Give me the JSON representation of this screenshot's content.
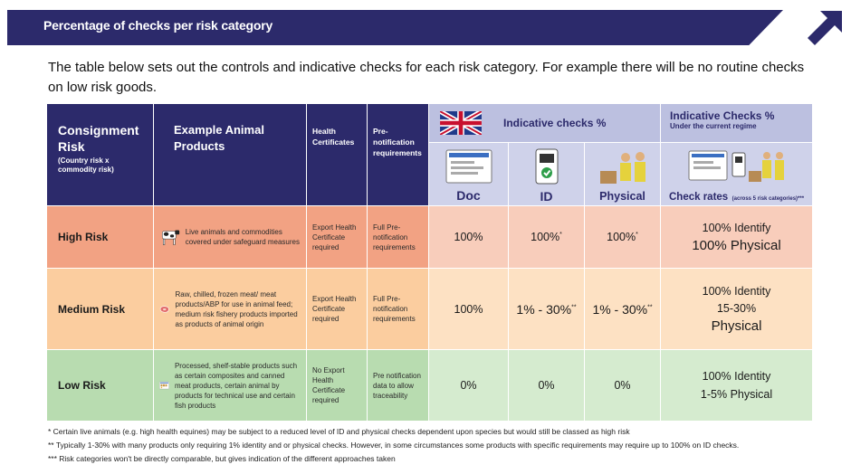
{
  "banner": {
    "title": "Percentage of checks per risk category"
  },
  "intro": "The table below sets out the controls and indicative checks for each risk category. For example there will be no routine checks on low risk goods.",
  "header": {
    "consignment": "Consignment Risk",
    "consignment_sub": "(Country risk x commodity risk)",
    "example": "Example  Animal Products",
    "health": "Health Certificates",
    "prenotif": "Pre-notification requirements",
    "indicative": "Indicative checks %",
    "indicative_current": "Indicative Checks %",
    "indicative_current_sub": "Under the current regime",
    "doc": "Doc",
    "id": "ID",
    "physical": "Physical",
    "check_rates": "Check rates",
    "check_rates_sub": "(across 5 risk categories)***"
  },
  "rows": [
    {
      "risk": "High Risk",
      "example": "Live animals and commodities covered under safeguard measures",
      "health": "Export Health Certificate required",
      "prenotif": "Full Pre-notification requirements",
      "doc": "100%",
      "id": "100%",
      "id_mark": "*",
      "physical": "100%",
      "physical_mark": "*",
      "current_1": "100% Identify",
      "current_2": "100% Physical"
    },
    {
      "risk": "Medium Risk",
      "example": "Raw, chilled, frozen meat/ meat products/ABP for use in animal feed; medium risk fishery products imported as products of animal origin",
      "health": "Export Health Certificate required",
      "prenotif": "Full Pre-notification requirements",
      "doc": "100%",
      "id": "1% - 30%",
      "id_mark": "**",
      "physical": "1% - 30%",
      "physical_mark": "**",
      "current_1": "100% Identity",
      "current_2": "15-30%",
      "current_3": "Physical"
    },
    {
      "risk": "Low Risk",
      "example": "Processed, shelf-stable products such as certain composites and canned meat products, certain animal by products for technical use and certain fish products",
      "health": "No Export Health Certificate required",
      "prenotif": "Pre notification data to allow traceability",
      "doc": "0%",
      "id": "0%",
      "physical": "0%",
      "current_1": "100% Identity",
      "current_2": "1-5% Physical"
    }
  ],
  "footnotes": [
    "* Certain live animals (e.g. high health equines) may be subject to a reduced level of ID and physical checks dependent upon species but would still be classed as high risk",
    "** Typically 1-30% with many products only requiring 1% identity and or physical checks. However, in some circumstances some products with specific requirements may require up to 100% on ID checks.",
    "*** Risk categories won't be directly comparable, but gives indication of the different approaches taken"
  ],
  "colors": {
    "navy": "#2c2a6b",
    "high": "#f2a283",
    "medium": "#fbcd9f",
    "low": "#b8dcb0",
    "header_blue": "#bcc0e0"
  },
  "icons": [
    "uk-flag-icon",
    "document-screen-icon",
    "id-phone-icon",
    "inspector-icon",
    "arrow-icon",
    "cow-icon",
    "meat-icon",
    "canned-goods-icon"
  ]
}
